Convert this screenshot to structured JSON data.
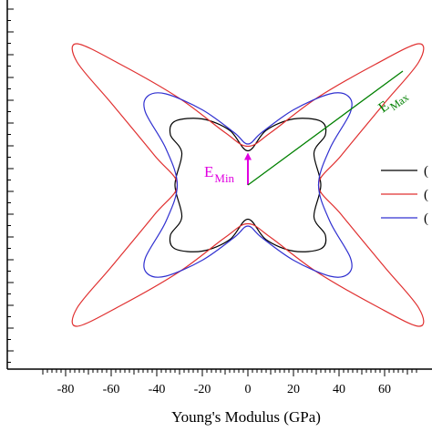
{
  "chart_data": {
    "type": "line",
    "title": "",
    "xlabel": "Young's Modulus (GPa)",
    "ylabel": "",
    "xlim": [
      -90,
      75
    ],
    "ylim": [
      -75,
      75
    ],
    "x_ticks": [
      -80,
      -60,
      -40,
      -20,
      0,
      20,
      40,
      60
    ],
    "x_tick_labels": [
      "-80",
      "-60",
      "-40",
      "-20",
      "0",
      "20",
      "40",
      "60"
    ],
    "grid": false,
    "legend": {
      "placement": "right",
      "entries": [
        {
          "label": "(",
          "color": "#000000"
        },
        {
          "label": "(",
          "color": "#e03030"
        },
        {
          "label": "(",
          "color": "#3030d0"
        }
      ]
    },
    "series": [
      {
        "color": "#000000",
        "points": [
          [
            32,
            0
          ],
          [
            29,
            14
          ],
          [
            34,
            22
          ],
          [
            32,
            28
          ],
          [
            20,
            29
          ],
          [
            8,
            24
          ],
          [
            0,
            15
          ],
          [
            -8,
            24
          ],
          [
            -20,
            29
          ],
          [
            -32,
            28
          ],
          [
            -34,
            22
          ],
          [
            -29,
            14
          ],
          [
            -32,
            0
          ],
          [
            -29,
            -14
          ],
          [
            -34,
            -22
          ],
          [
            -32,
            -28
          ],
          [
            -20,
            -29
          ],
          [
            -8,
            -24
          ],
          [
            0,
            -15
          ],
          [
            8,
            -24
          ],
          [
            20,
            -29
          ],
          [
            32,
            -28
          ],
          [
            34,
            -22
          ],
          [
            29,
            -14
          ],
          [
            32,
            0
          ]
        ]
      },
      {
        "color": "#e03030",
        "points": [
          [
            31,
            0
          ],
          [
            41,
            13
          ],
          [
            60,
            36
          ],
          [
            75,
            54
          ],
          [
            75,
            62
          ],
          [
            56,
            53
          ],
          [
            30,
            38
          ],
          [
            10,
            23
          ],
          [
            0,
            17
          ],
          [
            -10,
            23
          ],
          [
            -30,
            38
          ],
          [
            -56,
            53
          ],
          [
            -75,
            62
          ],
          [
            -75,
            54
          ],
          [
            -60,
            36
          ],
          [
            -41,
            13
          ],
          [
            -31,
            0
          ],
          [
            -41,
            -13
          ],
          [
            -60,
            -36
          ],
          [
            -75,
            -54
          ],
          [
            -75,
            -62
          ],
          [
            -56,
            -53
          ],
          [
            -30,
            -38
          ],
          [
            -10,
            -23
          ],
          [
            0,
            -17
          ],
          [
            10,
            -23
          ],
          [
            30,
            -38
          ],
          [
            56,
            -53
          ],
          [
            75,
            -62
          ],
          [
            75,
            -54
          ],
          [
            60,
            -36
          ],
          [
            41,
            -13
          ],
          [
            31,
            0
          ]
        ]
      },
      {
        "color": "#3030d0",
        "points": [
          [
            31,
            0
          ],
          [
            36,
            16
          ],
          [
            45,
            32
          ],
          [
            44,
            39
          ],
          [
            36,
            40
          ],
          [
            20,
            33
          ],
          [
            6,
            23
          ],
          [
            0,
            18
          ],
          [
            -6,
            23
          ],
          [
            -20,
            33
          ],
          [
            -36,
            40
          ],
          [
            -44,
            39
          ],
          [
            -45,
            32
          ],
          [
            -36,
            16
          ],
          [
            -31,
            0
          ],
          [
            -36,
            -16
          ],
          [
            -45,
            -32
          ],
          [
            -44,
            -39
          ],
          [
            -36,
            -40
          ],
          [
            -20,
            -33
          ],
          [
            -6,
            -23
          ],
          [
            0,
            -18
          ],
          [
            6,
            -23
          ],
          [
            20,
            -33
          ],
          [
            36,
            -40
          ],
          [
            44,
            -39
          ],
          [
            45,
            -32
          ],
          [
            36,
            -16
          ],
          [
            31,
            0
          ]
        ]
      }
    ],
    "annotations": [
      {
        "label": "E",
        "subscript": "Min",
        "color": "#e000e0",
        "arrow": {
          "from": [
            0,
            0
          ],
          "to": [
            0,
            15
          ]
        }
      },
      {
        "label": "E",
        "subscript": "Max",
        "color": "#008000",
        "line": {
          "from": [
            0,
            0
          ],
          "to": [
            68,
            50
          ]
        }
      }
    ]
  }
}
